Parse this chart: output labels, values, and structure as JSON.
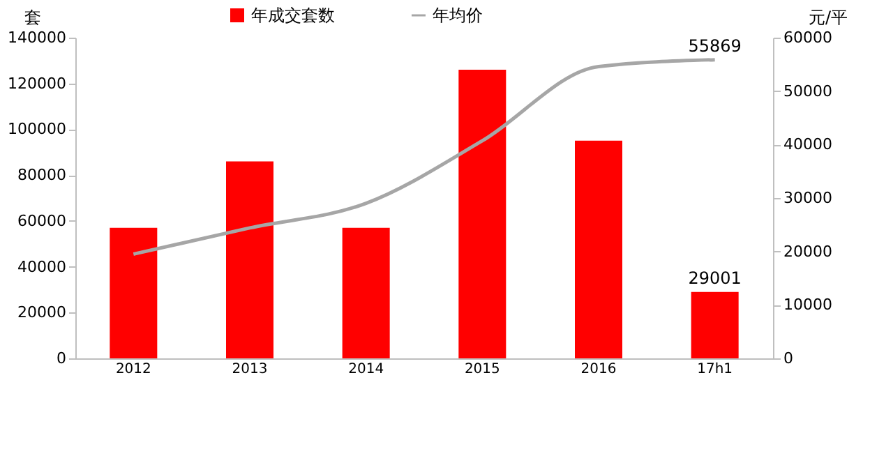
{
  "chart_data": {
    "type": "bar",
    "categories": [
      "2012",
      "2013",
      "2014",
      "2015",
      "2016",
      "17h1"
    ],
    "series": [
      {
        "name": "年成交套数",
        "color": "#ff0000",
        "values": [
          57000,
          86000,
          57000,
          126000,
          95000,
          29001
        ],
        "value_labels": [
          null,
          null,
          null,
          null,
          null,
          "29001"
        ]
      },
      {
        "name": "年均价",
        "type": "line",
        "axis": "y2",
        "color": "#a6a6a6",
        "values": [
          19500,
          24400,
          29000,
          40700,
          54600,
          55869
        ],
        "value_labels": [
          null,
          null,
          null,
          null,
          null,
          "55869"
        ]
      }
    ],
    "ylabel": "套",
    "y2label": "元/平",
    "ylim": [
      0,
      140000
    ],
    "yticks": [
      0,
      20000,
      40000,
      60000,
      80000,
      100000,
      120000,
      140000
    ],
    "y2lim": [
      0,
      60000
    ],
    "y2ticks": [
      0,
      10000,
      20000,
      30000,
      40000,
      50000,
      60000
    ],
    "grid": false,
    "legend": "top",
    "marker": "none",
    "line_style": "solid"
  }
}
